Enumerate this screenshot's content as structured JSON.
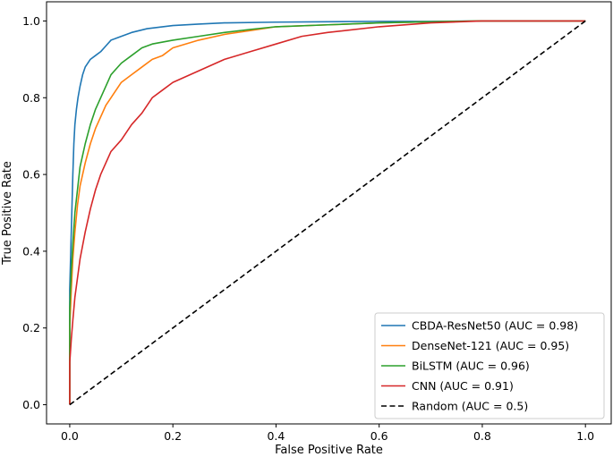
{
  "chart_data": {
    "type": "line",
    "title": "",
    "xlabel": "False Positive Rate",
    "ylabel": "True Positive Rate",
    "xlim": [
      -0.045,
      1.05
    ],
    "ylim": [
      -0.05,
      1.05
    ],
    "xticks": [
      0.0,
      0.2,
      0.4,
      0.6,
      0.8,
      1.0
    ],
    "yticks": [
      0.0,
      0.2,
      0.4,
      0.6,
      0.8,
      1.0
    ],
    "xtick_labels": [
      "0.0",
      "0.2",
      "0.4",
      "0.6",
      "0.8",
      "1.0"
    ],
    "ytick_labels": [
      "0.0",
      "0.2",
      "0.4",
      "0.6",
      "0.8",
      "1.0"
    ],
    "grid": false,
    "legend_position": "lower-right",
    "series": [
      {
        "key": "cbda",
        "name": "CBDA-ResNet50 (AUC = 0.98)",
        "color": "#1f77b4",
        "dash": "solid",
        "x": [
          0,
          0,
          0.002,
          0.004,
          0.006,
          0.008,
          0.01,
          0.013,
          0.016,
          0.02,
          0.025,
          0.03,
          0.04,
          0.05,
          0.06,
          0.07,
          0.08,
          0.09,
          0.1,
          0.12,
          0.15,
          0.2,
          0.25,
          0.3,
          0.4,
          0.5,
          0.6,
          0.7,
          0.8,
          0.9,
          1.0
        ],
        "y": [
          0,
          0.3,
          0.4,
          0.5,
          0.6,
          0.68,
          0.73,
          0.77,
          0.8,
          0.83,
          0.86,
          0.88,
          0.9,
          0.91,
          0.92,
          0.935,
          0.95,
          0.955,
          0.96,
          0.97,
          0.98,
          0.988,
          0.992,
          0.995,
          0.997,
          0.998,
          0.999,
          0.999,
          1.0,
          1.0,
          1.0
        ]
      },
      {
        "key": "densenet",
        "name": "DenseNet-121 (AUC = 0.95)",
        "color": "#ff7f0e",
        "dash": "solid",
        "x": [
          0,
          0,
          0.003,
          0.006,
          0.01,
          0.015,
          0.02,
          0.03,
          0.04,
          0.05,
          0.06,
          0.07,
          0.08,
          0.1,
          0.12,
          0.14,
          0.16,
          0.18,
          0.2,
          0.25,
          0.3,
          0.35,
          0.4,
          0.5,
          0.6,
          0.7,
          0.8,
          0.9,
          1.0
        ],
        "y": [
          0,
          0.2,
          0.3,
          0.38,
          0.45,
          0.52,
          0.57,
          0.63,
          0.68,
          0.72,
          0.75,
          0.78,
          0.8,
          0.84,
          0.86,
          0.88,
          0.9,
          0.91,
          0.93,
          0.95,
          0.965,
          0.975,
          0.985,
          0.99,
          0.995,
          0.998,
          1.0,
          1.0,
          1.0
        ]
      },
      {
        "key": "bilstm",
        "name": "BiLSTM (AUC = 0.96)",
        "color": "#2ca02c",
        "dash": "solid",
        "x": [
          0,
          0,
          0.003,
          0.006,
          0.01,
          0.015,
          0.02,
          0.025,
          0.03,
          0.04,
          0.05,
          0.06,
          0.07,
          0.08,
          0.1,
          0.12,
          0.14,
          0.16,
          0.18,
          0.2,
          0.25,
          0.3,
          0.35,
          0.4,
          0.5,
          0.6,
          0.7,
          0.8,
          0.9,
          1.0
        ],
        "y": [
          0,
          0.25,
          0.35,
          0.42,
          0.5,
          0.56,
          0.62,
          0.65,
          0.68,
          0.73,
          0.77,
          0.8,
          0.83,
          0.86,
          0.89,
          0.91,
          0.93,
          0.94,
          0.945,
          0.95,
          0.96,
          0.97,
          0.978,
          0.985,
          0.99,
          0.995,
          0.998,
          1.0,
          1.0,
          1.0
        ]
      },
      {
        "key": "cnn",
        "name": "CNN (AUC = 0.91)",
        "color": "#d62728",
        "dash": "solid",
        "x": [
          0,
          0,
          0.003,
          0.006,
          0.01,
          0.015,
          0.02,
          0.03,
          0.04,
          0.05,
          0.06,
          0.07,
          0.08,
          0.1,
          0.12,
          0.14,
          0.16,
          0.18,
          0.2,
          0.25,
          0.3,
          0.35,
          0.4,
          0.45,
          0.5,
          0.6,
          0.7,
          0.8,
          0.9,
          1.0
        ],
        "y": [
          0,
          0.11,
          0.17,
          0.22,
          0.28,
          0.33,
          0.38,
          0.45,
          0.51,
          0.56,
          0.6,
          0.63,
          0.66,
          0.69,
          0.73,
          0.76,
          0.8,
          0.82,
          0.84,
          0.87,
          0.9,
          0.92,
          0.94,
          0.96,
          0.97,
          0.985,
          0.995,
          1.0,
          1.0,
          1.0
        ]
      },
      {
        "key": "random",
        "name": "Random (AUC = 0.5)",
        "color": "#000000",
        "dash": "dashed",
        "x": [
          0,
          1
        ],
        "y": [
          0,
          1
        ]
      }
    ]
  }
}
